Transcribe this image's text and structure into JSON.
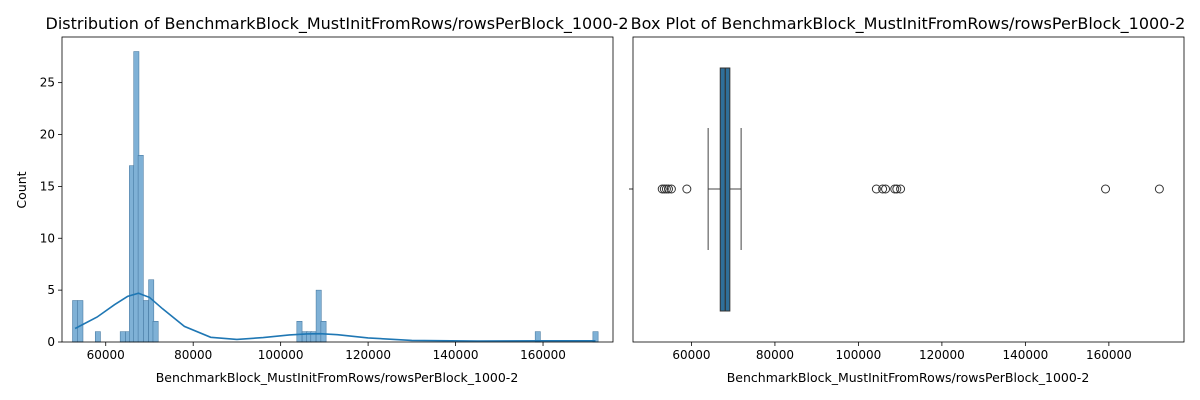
{
  "chart_data": [
    {
      "type": "bar",
      "title": "Distribution of BenchmarkBlock_MustInitFromRows/rowsPerBlock_1000-2",
      "xlabel": "BenchmarkBlock_MustInitFromRows/rowsPerBlock_1000-2",
      "ylabel": "Count",
      "xlim": [
        50000,
        176000
      ],
      "ylim": [
        0,
        29.4
      ],
      "xticks": [
        60000,
        80000,
        100000,
        120000,
        140000,
        160000
      ],
      "yticks": [
        0,
        5,
        10,
        15,
        20,
        25
      ],
      "bin_width": 1200,
      "bins": [
        {
          "x": 53000,
          "count": 4
        },
        {
          "x": 54200,
          "count": 4
        },
        {
          "x": 58200,
          "count": 1
        },
        {
          "x": 63900,
          "count": 1
        },
        {
          "x": 65100,
          "count": 1
        },
        {
          "x": 66000,
          "count": 17
        },
        {
          "x": 67000,
          "count": 28
        },
        {
          "x": 68000,
          "count": 18
        },
        {
          "x": 69200,
          "count": 4
        },
        {
          "x": 70400,
          "count": 6
        },
        {
          "x": 71400,
          "count": 2
        },
        {
          "x": 104300,
          "count": 2
        },
        {
          "x": 105500,
          "count": 1
        },
        {
          "x": 106500,
          "count": 1
        },
        {
          "x": 107500,
          "count": 1
        },
        {
          "x": 108700,
          "count": 5
        },
        {
          "x": 109800,
          "count": 2
        },
        {
          "x": 158800,
          "count": 1
        },
        {
          "x": 172000,
          "count": 1
        }
      ],
      "kde": {
        "x": [
          53000,
          58000,
          62000,
          65000,
          67500,
          70000,
          73000,
          78000,
          84000,
          90000,
          96000,
          102000,
          106000,
          109000,
          113000,
          120000,
          130000,
          145000,
          160000,
          172000
        ],
        "y": [
          1.3,
          2.4,
          3.6,
          4.4,
          4.7,
          4.3,
          3.2,
          1.5,
          0.45,
          0.25,
          0.42,
          0.68,
          0.78,
          0.8,
          0.7,
          0.4,
          0.15,
          0.1,
          0.12,
          0.12
        ]
      },
      "bar_color": "#7fb1d6",
      "bar_edge": "#3b6f99",
      "line_color": "#1f77b4"
    },
    {
      "type": "box",
      "title": "Box Plot of BenchmarkBlock_MustInitFromRows/rowsPerBlock_1000-2",
      "xlabel": "BenchmarkBlock_MustInitFromRows/rowsPerBlock_1000-2",
      "xlim": [
        46000,
        178000
      ],
      "xticks": [
        60000,
        80000,
        100000,
        120000,
        140000,
        160000
      ],
      "whisker_low": 64000,
      "q1": 66900,
      "median": 68100,
      "q3": 69200,
      "whisker_high": 71900,
      "outliers": [
        53000,
        53500,
        54000,
        54500,
        55200,
        58900,
        104300,
        105800,
        106500,
        108700,
        109200,
        110100,
        159200,
        172100
      ],
      "box_color": "#2f6f9a"
    }
  ]
}
